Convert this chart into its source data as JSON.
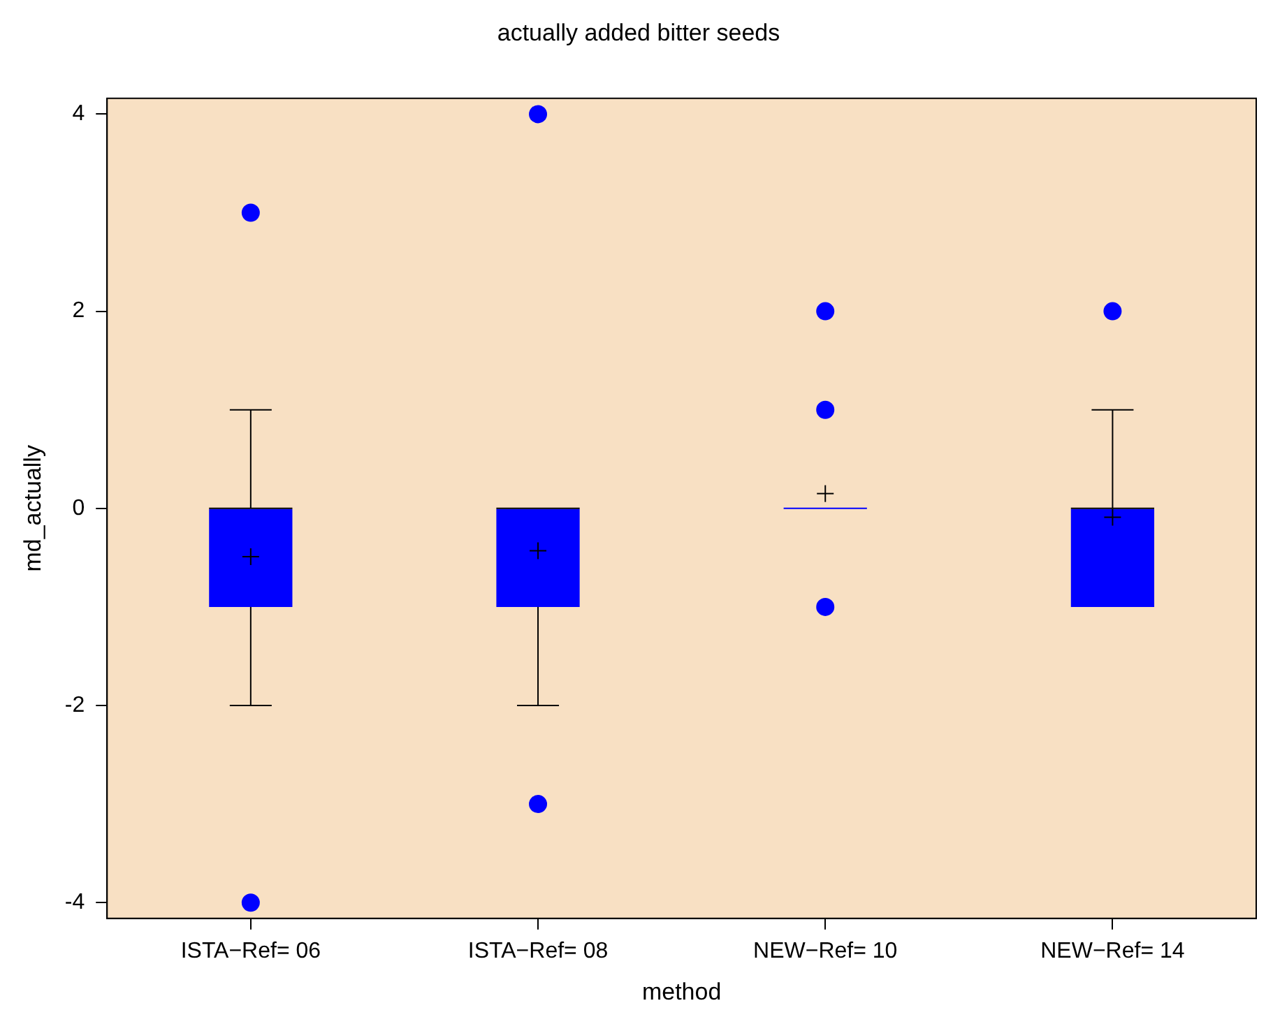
{
  "chart_data": {
    "type": "box",
    "title": "actually added bitter seeds",
    "xlabel": "method",
    "ylabel": "md_actually",
    "categories": [
      "ISTA−Ref= 06",
      "ISTA−Ref= 08",
      "NEW−Ref= 10",
      "NEW−Ref= 14"
    ],
    "series": [
      {
        "color": "#0000ff",
        "boxes": [
          {
            "low": -2,
            "q1": -1,
            "median": 0,
            "q3": 0,
            "high": 1,
            "mean": -0.49,
            "outliers": [
              3,
              -4
            ]
          },
          {
            "low": -2,
            "q1": -1,
            "median": 0,
            "q3": 0,
            "high": 0,
            "mean": -0.43,
            "outliers": [
              4,
              -3
            ]
          },
          {
            "low": 0,
            "q1": 0,
            "median": 0,
            "q3": 0,
            "high": 0,
            "mean": 0.15,
            "outliers": [
              2,
              1,
              -1
            ]
          },
          {
            "low": -1,
            "q1": -1,
            "median": 0,
            "q3": 0,
            "high": 1,
            "mean": -0.09,
            "outliers": [
              2
            ]
          }
        ]
      }
    ],
    "ylim": [
      -4.16,
      4.16
    ],
    "yticks": [
      -4,
      -2,
      0,
      2,
      4
    ],
    "grid": false,
    "legend": false
  }
}
